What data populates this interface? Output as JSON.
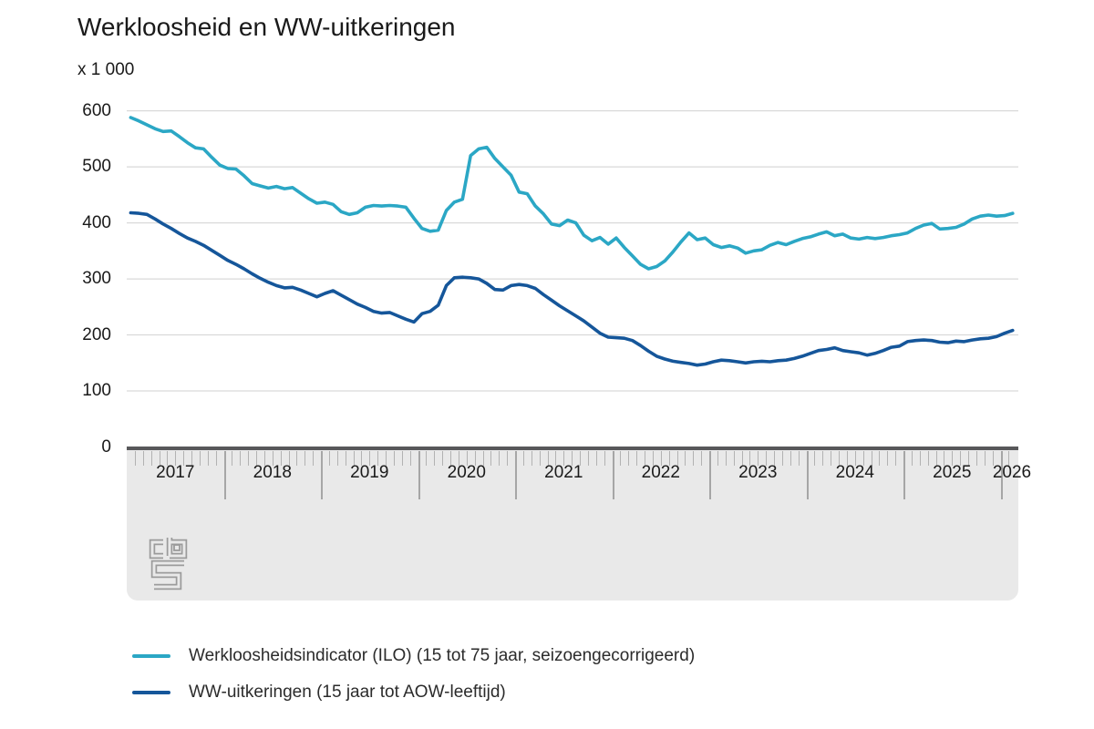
{
  "title": "Werkloosheid en WW-uitkeringen",
  "unit_label": "x 1 000",
  "y_axis": {
    "ticks": [
      600,
      500,
      400,
      300,
      200,
      100,
      0
    ]
  },
  "x_axis": {
    "years": [
      "2017",
      "2018",
      "2019",
      "2020",
      "2021",
      "2022",
      "2023",
      "2024",
      "2025",
      "2026"
    ]
  },
  "branding": {
    "logo_name": "cbs-logo"
  },
  "colors": {
    "ilo_line": "#2ba7c5",
    "ww_line": "#15569a",
    "gridline": "#d9d9d9",
    "axis_bar": "#58585a",
    "axis_band": "#e9e9e9",
    "logo_gray": "#9b9b9b"
  },
  "chart_data": {
    "type": "line",
    "title": "Werkloosheid en WW-uitkeringen",
    "unit": "x 1 000",
    "frequency": "monthly",
    "x_start": "2017-01",
    "x_end": "2026-02",
    "ylim": [
      0,
      600
    ],
    "y_ticks": [
      0,
      100,
      200,
      300,
      400,
      500,
      600
    ],
    "x_tick_years": [
      2017,
      2018,
      2019,
      2020,
      2021,
      2022,
      2023,
      2024,
      2025,
      2026
    ],
    "grid": "horizontal",
    "legend_position": "bottom-left",
    "series": [
      {
        "name": "Werkloosheidsindicator (ILO) (15 tot 75 jaar, seizoengecorrigeerd)",
        "color": "#2ba7c5",
        "values": [
          588,
          582,
          575,
          568,
          563,
          564,
          554,
          543,
          534,
          532,
          517,
          503,
          497,
          496,
          484,
          470,
          466,
          462,
          465,
          461,
          463,
          453,
          443,
          435,
          437,
          433,
          420,
          415,
          418,
          428,
          431,
          430,
          431,
          430,
          428,
          408,
          390,
          385,
          387,
          422,
          437,
          442,
          520,
          532,
          535,
          515,
          500,
          485,
          455,
          452,
          430,
          416,
          398,
          395,
          405,
          400,
          378,
          368,
          374,
          362,
          373,
          356,
          341,
          326,
          318,
          322,
          332,
          348,
          366,
          382,
          370,
          373,
          361,
          356,
          359,
          355,
          346,
          350,
          352,
          360,
          365,
          361,
          367,
          372,
          375,
          380,
          384,
          377,
          380,
          373,
          371,
          374,
          372,
          374,
          377,
          379,
          382,
          390,
          396,
          399,
          389,
          390,
          392,
          398,
          407,
          412,
          414,
          412,
          413,
          417
        ]
      },
      {
        "name": "WW-uitkeringen (15 jaar tot AOW-leeftijd)",
        "color": "#15569a",
        "values": [
          418,
          417,
          415,
          407,
          398,
          390,
          381,
          373,
          367,
          360,
          351,
          342,
          333,
          326,
          318,
          309,
          301,
          294,
          288,
          284,
          285,
          280,
          274,
          268,
          274,
          279,
          271,
          263,
          255,
          249,
          242,
          239,
          240,
          234,
          228,
          223,
          238,
          242,
          253,
          288,
          302,
          303,
          302,
          300,
          292,
          281,
          280,
          288,
          290,
          288,
          283,
          272,
          262,
          252,
          243,
          234,
          225,
          214,
          203,
          196,
          195,
          194,
          190,
          181,
          171,
          162,
          157,
          153,
          151,
          149,
          146,
          148,
          152,
          155,
          154,
          152,
          150,
          152,
          153,
          152,
          154,
          155,
          158,
          162,
          167,
          172,
          174,
          177,
          172,
          170,
          168,
          164,
          167,
          172,
          178,
          180,
          188,
          190,
          191,
          190,
          187,
          186,
          189,
          188,
          191,
          193,
          194,
          197,
          203,
          208
        ]
      }
    ]
  }
}
